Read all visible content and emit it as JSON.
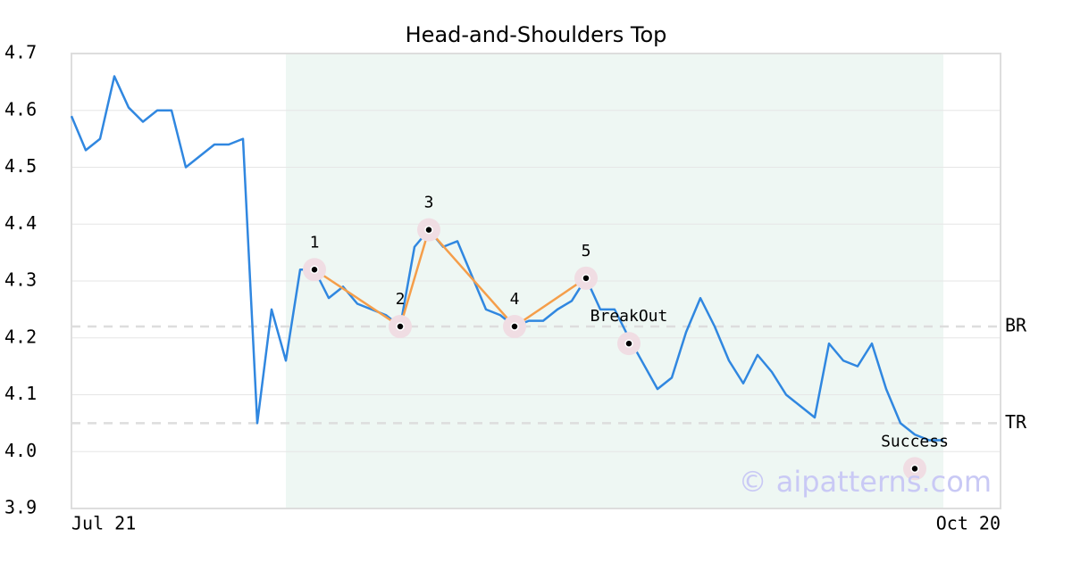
{
  "chart_data": {
    "type": "line",
    "title": "Head-and-Shoulders Top",
    "x": [
      0,
      1,
      2,
      3,
      4,
      5,
      6,
      7,
      8,
      9,
      10,
      11,
      12,
      13,
      14,
      15,
      16,
      17,
      18,
      19,
      20,
      21,
      22,
      23,
      24,
      25,
      26,
      27,
      28,
      29,
      30,
      31,
      32,
      33,
      34,
      35,
      36,
      37,
      38,
      39,
      40,
      41,
      42,
      43,
      44,
      45,
      46,
      47,
      48,
      49,
      50,
      51,
      52,
      53,
      54,
      55,
      56,
      57,
      58,
      59,
      60,
      61
    ],
    "series": [
      {
        "color": "#3087e0",
        "values": [
          4.59,
          4.53,
          4.55,
          4.66,
          4.605,
          4.58,
          4.6,
          4.6,
          4.5,
          4.52,
          4.54,
          4.54,
          4.55,
          4.05,
          4.25,
          4.16,
          4.32,
          4.32,
          4.27,
          4.29,
          4.26,
          4.25,
          4.24,
          4.22,
          4.36,
          4.39,
          4.36,
          4.37,
          4.31,
          4.25,
          4.24,
          4.22,
          4.23,
          4.23,
          4.25,
          4.265,
          4.305,
          4.25,
          4.25,
          4.2,
          4.155,
          4.11,
          4.13,
          4.21,
          4.27,
          4.22,
          4.16,
          4.12,
          4.17,
          4.14,
          4.1,
          4.08,
          4.06,
          4.19,
          4.16,
          4.15,
          4.19,
          4.11,
          4.05,
          4.03,
          4.02,
          4.02
        ]
      }
    ],
    "points": [
      {
        "label": "1",
        "x": 17,
        "y": 4.32
      },
      {
        "label": "2",
        "x": 23,
        "y": 4.22
      },
      {
        "label": "3",
        "x": 25,
        "y": 4.39
      },
      {
        "label": "4",
        "x": 31,
        "y": 4.22
      },
      {
        "label": "5",
        "x": 36,
        "y": 4.305
      },
      {
        "label": "BreakOut",
        "x": 39,
        "y": 4.19
      },
      {
        "label": "Success",
        "x": 59,
        "y": 3.97
      }
    ],
    "pattern_color": "#f59e4a",
    "shade": [
      15,
      61
    ],
    "shade_color": "#eef7f3",
    "hlines": [
      {
        "label": "BR",
        "value": 4.22
      },
      {
        "label": "TR",
        "value": 4.05
      }
    ],
    "watermark": "© aipatterns.com",
    "xlim": [
      0,
      65
    ],
    "xticks": [
      {
        "value": 0,
        "label": "Jul 21"
      },
      {
        "value": 65,
        "label": "Oct 20"
      }
    ],
    "ylim": [
      3.9,
      4.7
    ],
    "yticks": [
      3.9,
      {
        "value": 4,
        "label": "4.0"
      },
      4.1,
      4.2,
      4.3,
      4.4,
      4.5,
      4.6,
      4.7
    ],
    "grid": true
  }
}
